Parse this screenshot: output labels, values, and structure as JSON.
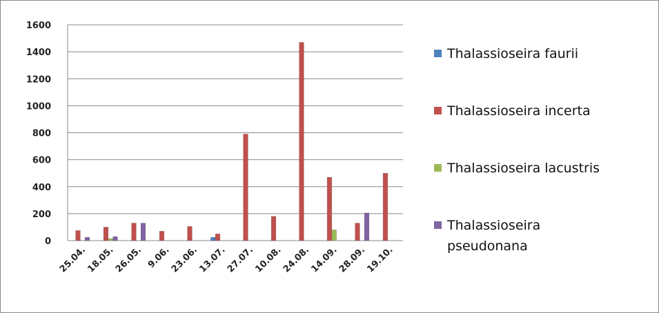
{
  "chart_data": {
    "type": "bar",
    "categories": [
      "25.04.",
      "18.05.",
      "26.05.",
      "9.06.",
      "23.06.",
      "13.07.",
      "27.07.",
      "10.08.",
      "24.08.",
      "14.09.",
      "28.09.",
      "19.10."
    ],
    "series": [
      {
        "name": "Thalassioseira faurii",
        "color": "#4f81bd",
        "values": [
          0,
          0,
          0,
          0,
          0,
          25,
          0,
          0,
          0,
          0,
          0,
          0
        ]
      },
      {
        "name": "Thalassioseira incerta",
        "color": "#c0504d",
        "values": [
          75,
          100,
          130,
          70,
          105,
          50,
          790,
          180,
          1470,
          470,
          130,
          500
        ]
      },
      {
        "name": "Thalassioseira lacustris",
        "color": "#9bbb59",
        "values": [
          0,
          15,
          0,
          0,
          0,
          0,
          0,
          0,
          0,
          80,
          0,
          0
        ]
      },
      {
        "name": "Thalassioseira pseudonana",
        "color": "#8064a2",
        "values": [
          25,
          30,
          130,
          0,
          0,
          0,
          0,
          0,
          0,
          0,
          205,
          0
        ]
      }
    ],
    "ylim": [
      0,
      1600
    ],
    "yticks": [
      0,
      200,
      400,
      600,
      800,
      1000,
      1200,
      1400,
      1600
    ],
    "grid": true,
    "legend": "right"
  }
}
